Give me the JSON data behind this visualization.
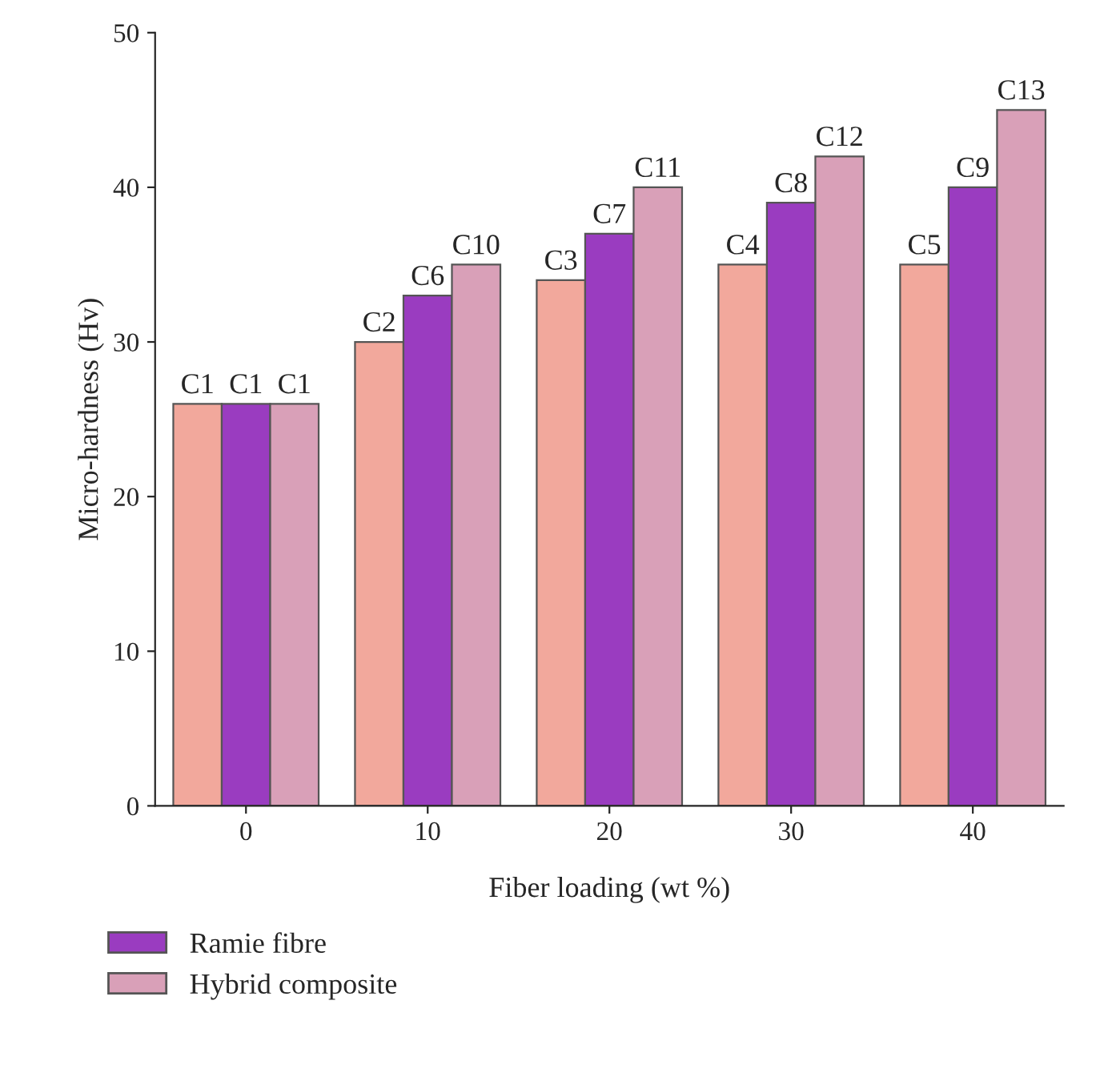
{
  "chart_data": {
    "type": "bar",
    "xlabel": "Fiber loading (wt %)",
    "ylabel": "Micro-hardness (Hv)",
    "categories": [
      "0",
      "10",
      "20",
      "30",
      "40"
    ],
    "series": [
      {
        "color": "#f2a89c",
        "values": [
          26,
          30,
          34,
          35,
          35
        ],
        "value_labels": [
          "C1",
          "C2",
          "C3",
          "C4",
          "C5"
        ]
      },
      {
        "name": "Ramie fibre",
        "color": "#9a3cc0",
        "values": [
          26,
          33,
          37,
          39,
          40
        ],
        "value_labels": [
          "C1",
          "C6",
          "C7",
          "C8",
          "C9"
        ]
      },
      {
        "name": "Hybrid composite",
        "color": "#d9a0b8",
        "values": [
          26,
          35,
          40,
          42,
          45
        ],
        "value_labels": [
          "C1",
          "C10",
          "C11",
          "C12",
          "C13"
        ]
      }
    ],
    "ylim": [
      0,
      50
    ],
    "yticks": [
      0,
      10,
      20,
      30,
      40,
      50
    ],
    "grid": false,
    "legend": "bottom"
  }
}
